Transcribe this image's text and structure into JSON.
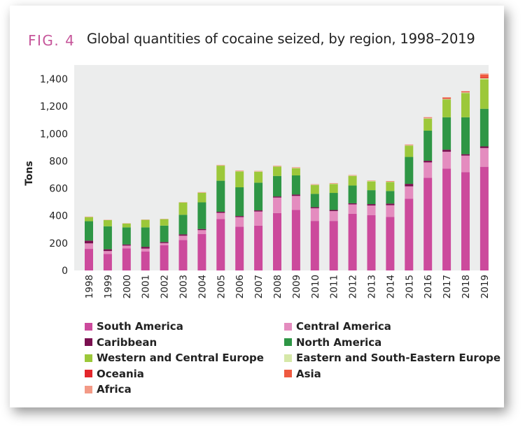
{
  "figure": {
    "label": "FIG. 4",
    "title": "Global quantities of cocaine seized, by region, 1998–2019"
  },
  "chart_data": {
    "type": "bar",
    "stacked": true,
    "title": "Global quantities of cocaine seized, by region, 1998–2019",
    "xlabel": "",
    "ylabel": "Tons",
    "ylim": [
      0,
      1450
    ],
    "yticks": [
      0,
      200,
      400,
      600,
      800,
      1000,
      1200,
      1400
    ],
    "ytick_labels": [
      "0",
      "200",
      "400",
      "600",
      "800",
      "1,000",
      "1,200",
      "1,400"
    ],
    "grid": false,
    "legend_position": "bottom",
    "categories": [
      "1998",
      "1999",
      "2000",
      "2001",
      "2002",
      "2003",
      "2004",
      "2005",
      "2006",
      "2007",
      "2008",
      "2009",
      "2010",
      "2011",
      "2012",
      "2013",
      "2014",
      "2015",
      "2016",
      "2017",
      "2018",
      "2019"
    ],
    "series": [
      {
        "name": "South America",
        "color": "#cc4a9c",
        "values": [
          158,
          120,
          162,
          138,
          185,
          222,
          267,
          376,
          320,
          328,
          420,
          442,
          362,
          362,
          415,
          405,
          392,
          525,
          678,
          745,
          718,
          758
        ]
      },
      {
        "name": "Central America",
        "color": "#e48cbf",
        "values": [
          40,
          22,
          20,
          22,
          15,
          32,
          28,
          45,
          70,
          103,
          113,
          103,
          93,
          72,
          68,
          70,
          85,
          90,
          112,
          123,
          122,
          137
        ]
      },
      {
        "name": "Caribbean",
        "color": "#7a1050",
        "values": [
          20,
          13,
          8,
          13,
          8,
          10,
          8,
          8,
          8,
          8,
          8,
          10,
          8,
          8,
          8,
          10,
          12,
          18,
          12,
          15,
          10,
          12
        ]
      },
      {
        "name": "North America",
        "color": "#2e9645",
        "values": [
          142,
          168,
          125,
          142,
          120,
          143,
          195,
          227,
          210,
          203,
          150,
          140,
          97,
          125,
          130,
          102,
          92,
          197,
          220,
          237,
          270,
          275
        ]
      },
      {
        "name": "Western and Central Europe",
        "color": "#9cc83a",
        "values": [
          30,
          45,
          28,
          55,
          47,
          90,
          70,
          110,
          116,
          80,
          68,
          52,
          65,
          65,
          70,
          64,
          66,
          82,
          88,
          130,
          177,
          215
        ]
      },
      {
        "name": "Eastern and South-Eastern Europe",
        "color": "#d6e8a8",
        "values": [
          1,
          1,
          1,
          1,
          1,
          1,
          1,
          2,
          2,
          2,
          2,
          3,
          2,
          3,
          3,
          3,
          2,
          3,
          3,
          4,
          5,
          8
        ]
      },
      {
        "name": "Oceania",
        "color": "#e3262b",
        "values": [
          0,
          0,
          0,
          0,
          0,
          0,
          0,
          0,
          0,
          0,
          0,
          0,
          0,
          0,
          0,
          0,
          0,
          1,
          2,
          4,
          3,
          5
        ]
      },
      {
        "name": "Asia",
        "color": "#ef5a40",
        "values": [
          0,
          0,
          0,
          0,
          0,
          0,
          0,
          0,
          0,
          0,
          1,
          1,
          1,
          1,
          1,
          1,
          2,
          2,
          3,
          6,
          4,
          22
        ]
      },
      {
        "name": "Africa",
        "color": "#f39a86",
        "values": [
          3,
          2,
          2,
          2,
          2,
          2,
          4,
          4,
          5,
          4,
          4,
          4,
          3,
          3,
          3,
          3,
          3,
          3,
          3,
          3,
          3,
          8
        ]
      }
    ]
  }
}
